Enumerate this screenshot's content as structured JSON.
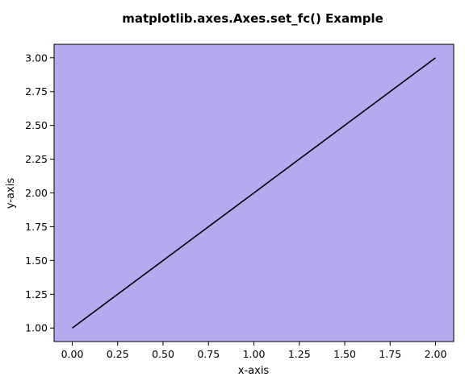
{
  "chart_data": {
    "type": "line",
    "title": "matplotlib.axes.Axes.set_fc() Example",
    "xlabel": "x-axis",
    "ylabel": "y-axis",
    "xlim": [
      -0.1,
      2.1
    ],
    "ylim": [
      0.9,
      3.1
    ],
    "x_ticks": [
      "0.00",
      "0.25",
      "0.50",
      "0.75",
      "1.00",
      "1.25",
      "1.50",
      "1.75",
      "2.00"
    ],
    "y_ticks": [
      "1.00",
      "1.25",
      "1.50",
      "1.75",
      "2.00",
      "2.25",
      "2.50",
      "2.75",
      "3.00"
    ],
    "series": [
      {
        "x": [
          0,
          1,
          2
        ],
        "y": [
          1,
          2,
          3
        ],
        "color": "#000000"
      }
    ],
    "axes_facecolor": "#b3aaf0",
    "grid": false,
    "legend": "none"
  }
}
